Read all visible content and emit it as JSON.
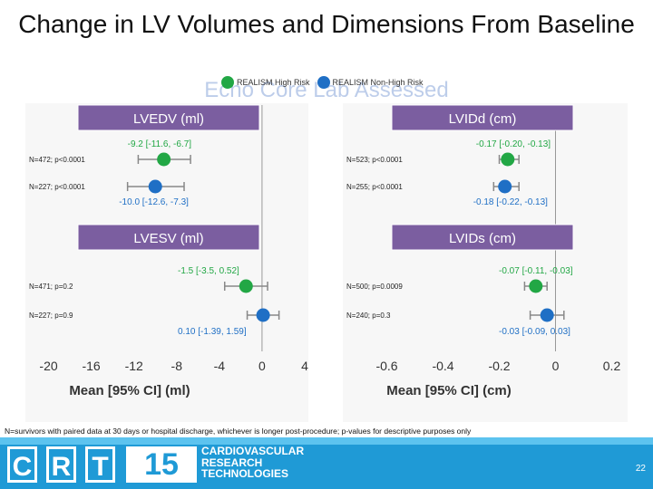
{
  "title": "Change in LV Volumes and Dimensions From Baseline",
  "subtitle": "Echo Core Lab Assessed",
  "legend": [
    {
      "label": "REALISM High Risk",
      "color": "#22a745"
    },
    {
      "label": "REALISM Non-High Risk",
      "color": "#1f6fc5"
    }
  ],
  "colors": {
    "high_risk": "#22a745",
    "non_high_risk": "#1f6fc5",
    "header_box": "#7b5ea0",
    "banner": "#1f9ad6"
  },
  "footnote": "N=survivors with paired data at 30 days or hospital discharge, whichever is longer post-procedure; p-values for descriptive purposes only",
  "banner": {
    "logo_letters": [
      "C",
      "R",
      "T"
    ],
    "logo_number": "15",
    "lines": [
      "CARDIOVASCULAR",
      "RESEARCH",
      "TECHNOLOGIES"
    ],
    "page_number": "22"
  },
  "chart_data": [
    {
      "type": "forest",
      "xlabel": "Mean [95% CI] (ml)",
      "xlim": [
        -22,
        4
      ],
      "ticks": [
        -20,
        -16,
        -12,
        -8,
        -4,
        0,
        4
      ],
      "measures": [
        {
          "name": "LVEDV (ml)",
          "rows": [
            {
              "series": "REALISM High Risk",
              "n_p": "N=472; p<0.0001",
              "mean": -9.2,
              "lo": -11.6,
              "hi": -6.7,
              "ci_text": "-9.2 [-11.6, -6.7]"
            },
            {
              "series": "REALISM Non-High Risk",
              "n_p": "N=227; p<0.0001",
              "mean": -10.0,
              "lo": -12.6,
              "hi": -7.3,
              "ci_text": "-10.0 [-12.6, -7.3]"
            }
          ]
        },
        {
          "name": "LVESV (ml)",
          "rows": [
            {
              "series": "REALISM High Risk",
              "n_p": "N=471; p=0.2",
              "mean": -1.5,
              "lo": -3.5,
              "hi": 0.52,
              "ci_text": "-1.5 [-3.5, 0.52]"
            },
            {
              "series": "REALISM Non-High Risk",
              "n_p": "N=227; p=0.9",
              "mean": 0.1,
              "lo": -1.39,
              "hi": 1.59,
              "ci_text": "0.10 [-1.39, 1.59]"
            }
          ]
        }
      ]
    },
    {
      "type": "forest",
      "xlabel": "Mean [95% CI] (cm)",
      "xlim": [
        -0.75,
        0.25
      ],
      "ticks": [
        -0.6,
        -0.4,
        -0.2,
        0,
        0.2
      ],
      "tick_labels": [
        "-0.6",
        "-0.4",
        "-0.2",
        "0",
        "0.2"
      ],
      "measures": [
        {
          "name": "LVIDd (cm)",
          "rows": [
            {
              "series": "REALISM High Risk",
              "n_p": "N=523; p<0.0001",
              "mean": -0.17,
              "lo": -0.2,
              "hi": -0.13,
              "ci_text": "-0.17 [-0.20, -0.13]"
            },
            {
              "series": "REALISM Non-High Risk",
              "n_p": "N=255; p<0.0001",
              "mean": -0.18,
              "lo": -0.22,
              "hi": -0.13,
              "ci_text": "-0.18 [-0.22, -0.13]"
            }
          ]
        },
        {
          "name": "LVIDs (cm)",
          "rows": [
            {
              "series": "REALISM High Risk",
              "n_p": "N=500; p=0.0009",
              "mean": -0.07,
              "lo": -0.11,
              "hi": -0.03,
              "ci_text": "-0.07 [-0.11, -0.03]"
            },
            {
              "series": "REALISM Non-High Risk",
              "n_p": "N=240; p=0.3",
              "mean": -0.03,
              "lo": -0.09,
              "hi": 0.03,
              "ci_text": "-0.03 [-0.09, 0.03]"
            }
          ]
        }
      ]
    }
  ]
}
